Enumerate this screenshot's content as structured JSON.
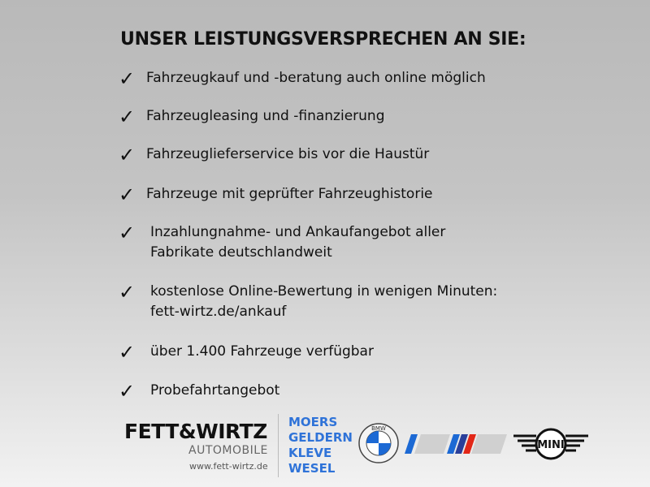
{
  "title": "UNSER LEISTUNGSVERSPRECHEN AN SIE:",
  "items": [
    {
      "lines": [
        "Fahrzeugkauf und -beratung auch online möglich"
      ]
    },
    {
      "lines": [
        "Fahrzeugleasing und -finanzierung"
      ]
    },
    {
      "lines": [
        "Fahrzeuglieferservice bis vor die Haustür"
      ]
    },
    {
      "lines": [
        "Fahrzeuge mit geprüfter Fahrzeughistorie"
      ]
    },
    {
      "lines": [
        "Inzahlungnahme- und Ankaufangebot aller",
        "Fabrikate deutschlandweit"
      ]
    },
    {
      "lines": [
        "kostenlose Online-Bewertung in wenigen Minuten:",
        "fett-wirtz.de/ankauf"
      ]
    },
    {
      "lines": [
        "über 1.400 Fahrzeuge verfügbar"
      ]
    },
    {
      "lines": [
        "Probefahrtangebot"
      ]
    }
  ],
  "check_icon": "checkmark-icon",
  "footer": {
    "brand": "FETT&WIRTZ",
    "brand_sub": "AUTOMOBILE",
    "website": "www.fett-wirtz.de",
    "cities": [
      "MOERS",
      "GELDERN",
      "KLEVE",
      "WESEL"
    ],
    "logos": {
      "bmw": "BMW",
      "mini": "MINI"
    },
    "colors": {
      "cities": "#2f73d8",
      "bmw_blue": "#1c69d4",
      "m_red": "#e22718"
    }
  }
}
